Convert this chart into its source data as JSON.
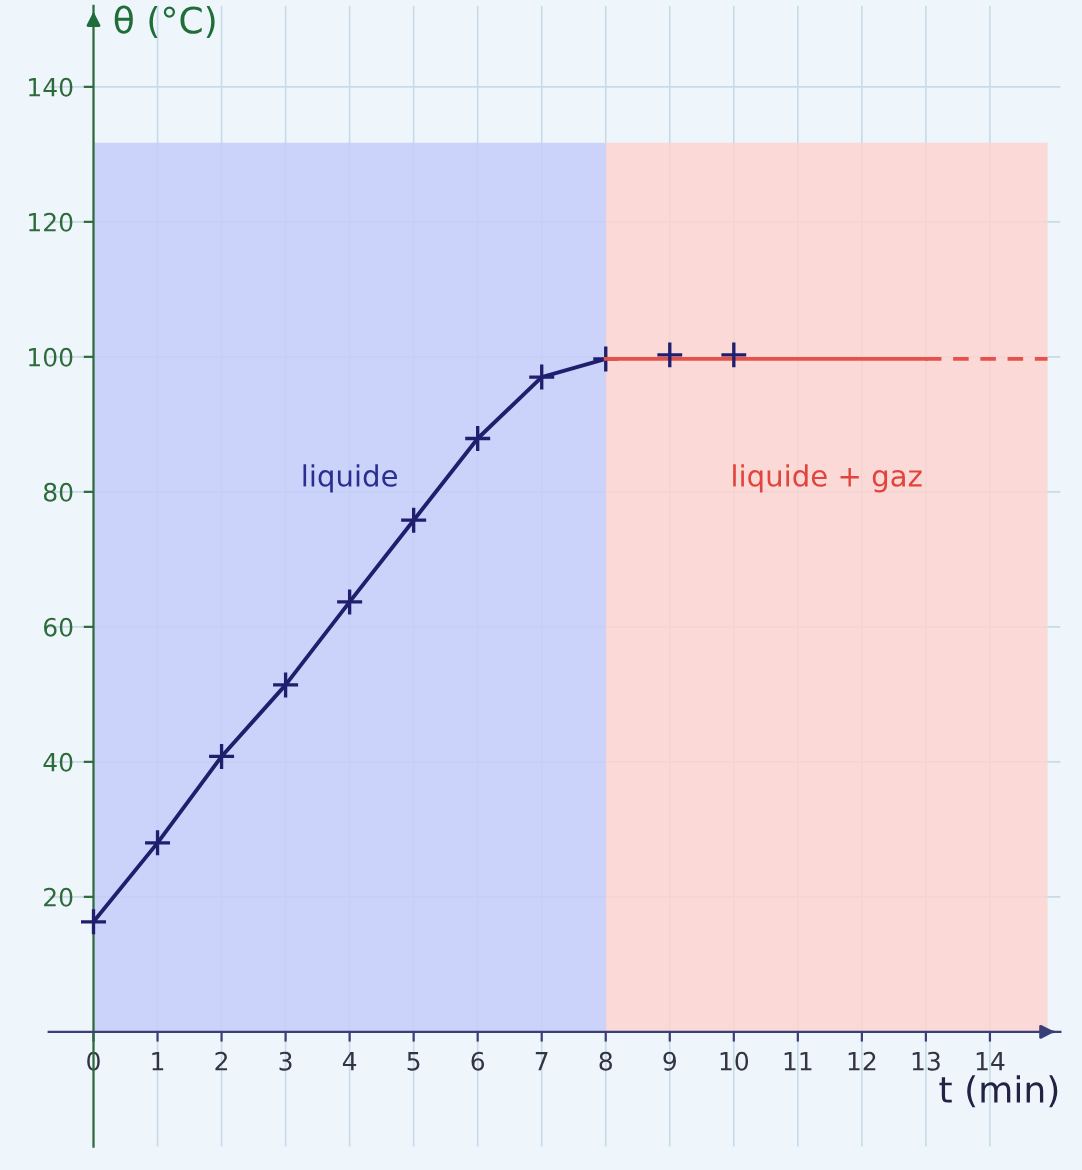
{
  "chart_data": {
    "type": "line",
    "xlabel": "t (min)",
    "ylabel": "θ (°C)",
    "xlim": [
      -0.7,
      15.1
    ],
    "ylim": [
      -17,
      152
    ],
    "xticks": [
      0,
      1,
      2,
      3,
      4,
      5,
      6,
      7,
      8,
      9,
      10,
      11,
      12,
      13,
      14
    ],
    "yticks": [
      20,
      40,
      60,
      80,
      100,
      120,
      140
    ],
    "grid": true,
    "series": [
      {
        "color": "#1f1f6e",
        "marker": "cross",
        "x": [
          0,
          1,
          2,
          3,
          4,
          5,
          6,
          7,
          8
        ],
        "values": [
          16.3,
          28,
          40.8,
          51.4,
          63.7,
          75.8,
          87.9,
          97,
          99.7
        ]
      },
      {
        "type": "line",
        "color": "#e8504a",
        "marker": "none",
        "x": [
          8,
          13
        ],
        "values": [
          99.7,
          99.7
        ]
      },
      {
        "type": "line",
        "color": "#e8504a",
        "marker": "none",
        "line_style": "dashed",
        "x": [
          13,
          14.9
        ],
        "values": [
          99.7,
          99.7
        ]
      },
      {
        "type": "scatter",
        "color": "#1f1f6e",
        "marker": "cross",
        "x": [
          9,
          10
        ],
        "values": [
          100.3,
          100.3
        ]
      }
    ],
    "bands": [
      {
        "axis": "x",
        "from": 0,
        "to": 8,
        "label": "liquide",
        "color": "#c5cdfa"
      },
      {
        "axis": "x",
        "from": 8,
        "to": 14.9,
        "label": "liquide + gaz",
        "color": "#fbd3d0"
      }
    ]
  }
}
